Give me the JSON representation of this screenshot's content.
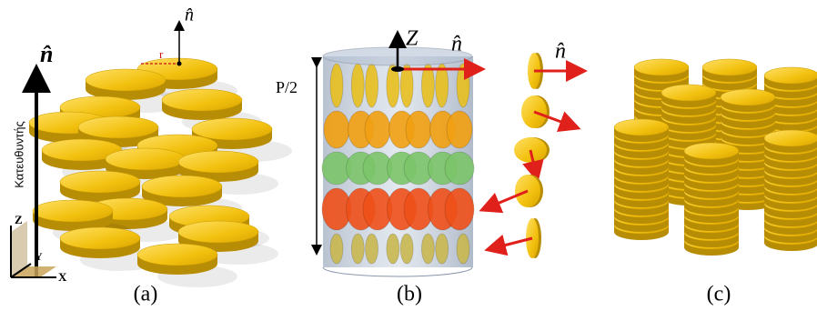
{
  "panels": [
    {
      "caption": "(a)",
      "director": "n̂",
      "disc_normal": "n̂",
      "radius": "r",
      "director_name": "Κατευθυντής",
      "axes": [
        "Z",
        "Y",
        "X"
      ]
    },
    {
      "caption": "(b)",
      "axis": "Z",
      "normal": "n̂",
      "pitch": "P/2",
      "chain_normal": "n̂"
    },
    {
      "caption": "(c)"
    }
  ]
}
